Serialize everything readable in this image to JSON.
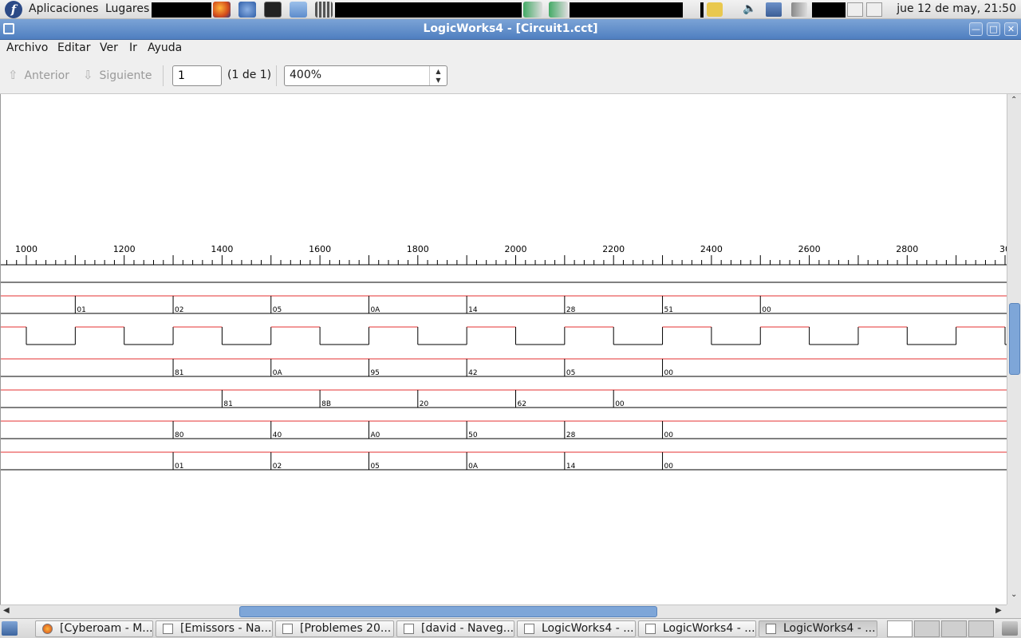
{
  "top_panel": {
    "menu_apps": "Aplicaciones",
    "menu_places": "Lugares",
    "clock": "jue 12 de may, 21:50"
  },
  "window": {
    "title": "LogicWorks4 - [Circuit1.cct]"
  },
  "menu": {
    "items": [
      "Archivo",
      "Editar",
      "Ver",
      "Ir",
      "Ayuda"
    ]
  },
  "toolbar": {
    "prev_label": "Anterior",
    "next_label": "Siguiente",
    "page_value": "1",
    "page_count": "(1 de 1)",
    "zoom_value": "400%"
  },
  "timeline": {
    "tick_labels": [
      "1000",
      "1200",
      "1400",
      "1600",
      "1800",
      "2000",
      "2200",
      "2400",
      "2600",
      "2800",
      "30"
    ]
  },
  "waveforms": {
    "colors": {
      "high": "#e53030",
      "low": "#000000"
    },
    "bus_rows": [
      {
        "row": 1,
        "start_step": 2,
        "values": [
          "01",
          "02",
          "05",
          "0A",
          "14",
          "28",
          "51",
          "00"
        ]
      },
      {
        "row": 3,
        "start_step": 4,
        "values": [
          "81",
          "0A",
          "95",
          "42",
          "05",
          "00"
        ]
      },
      {
        "row": 4,
        "start_step": 5,
        "values": [
          "81",
          "8B",
          "20",
          "62",
          "00"
        ]
      },
      {
        "row": 5,
        "start_step": 4,
        "values": [
          "80",
          "40",
          "A0",
          "50",
          "28",
          "00"
        ]
      },
      {
        "row": 6,
        "start_step": 4,
        "values": [
          "01",
          "02",
          "05",
          "0A",
          "14",
          "00"
        ]
      }
    ]
  },
  "taskbar": {
    "tasks": [
      "[Cyberoam - M...",
      "[Emissors - Na...",
      "[Problemes 20...",
      "[david - Naveg...",
      "LogicWorks4 - ...",
      "LogicWorks4 - ...",
      "LogicWorks4 - ..."
    ]
  }
}
